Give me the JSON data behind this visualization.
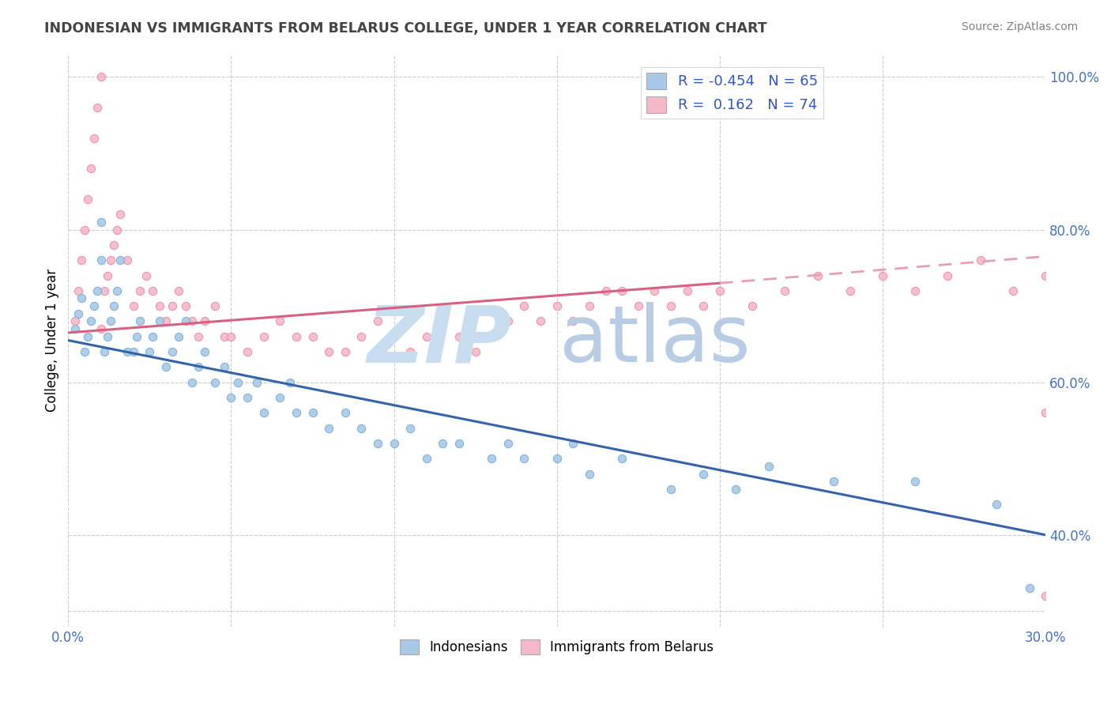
{
  "title": "INDONESIAN VS IMMIGRANTS FROM BELARUS COLLEGE, UNDER 1 YEAR CORRELATION CHART",
  "source": "Source: ZipAtlas.com",
  "ylabel": "College, Under 1 year",
  "xlim": [
    0.0,
    0.3
  ],
  "ylim": [
    0.28,
    1.03
  ],
  "blue_color": "#a8c8e8",
  "blue_edge_color": "#7aafd4",
  "pink_color": "#f4b8c8",
  "pink_edge_color": "#e890a8",
  "blue_line_color": "#3464a8",
  "pink_line_color": "#d86080",
  "pink_dash_color": "#e8a0b0",
  "legend_text_color": "#3355cc",
  "title_color": "#444444",
  "grid_color": "#cccccc",
  "tick_color": "#4472c4",
  "watermark_zip_color": "#c8ddf0",
  "watermark_atlas_color": "#b8cce4",
  "blue_line_x0": 0.0,
  "blue_line_y0": 0.655,
  "blue_line_x1": 0.3,
  "blue_line_y1": 0.4,
  "pink_line_x0": 0.0,
  "pink_line_y0": 0.665,
  "pink_line_solid_x1": 0.2,
  "pink_line_solid_y1": 0.73,
  "pink_line_dash_x1": 0.3,
  "pink_line_dash_y1": 0.765,
  "indo_x": [
    0.002,
    0.003,
    0.004,
    0.005,
    0.006,
    0.007,
    0.008,
    0.009,
    0.01,
    0.01,
    0.011,
    0.012,
    0.013,
    0.014,
    0.015,
    0.016,
    0.018,
    0.02,
    0.021,
    0.022,
    0.025,
    0.026,
    0.028,
    0.03,
    0.032,
    0.034,
    0.036,
    0.038,
    0.04,
    0.042,
    0.045,
    0.048,
    0.05,
    0.052,
    0.055,
    0.058,
    0.06,
    0.065,
    0.068,
    0.07,
    0.075,
    0.08,
    0.085,
    0.09,
    0.095,
    0.1,
    0.105,
    0.11,
    0.115,
    0.12,
    0.13,
    0.135,
    0.14,
    0.15,
    0.155,
    0.16,
    0.17,
    0.185,
    0.195,
    0.205,
    0.215,
    0.235,
    0.26,
    0.285,
    0.295
  ],
  "indo_y": [
    0.67,
    0.69,
    0.71,
    0.64,
    0.66,
    0.68,
    0.7,
    0.72,
    0.76,
    0.81,
    0.64,
    0.66,
    0.68,
    0.7,
    0.72,
    0.76,
    0.64,
    0.64,
    0.66,
    0.68,
    0.64,
    0.66,
    0.68,
    0.62,
    0.64,
    0.66,
    0.68,
    0.6,
    0.62,
    0.64,
    0.6,
    0.62,
    0.58,
    0.6,
    0.58,
    0.6,
    0.56,
    0.58,
    0.6,
    0.56,
    0.56,
    0.54,
    0.56,
    0.54,
    0.52,
    0.52,
    0.54,
    0.5,
    0.52,
    0.52,
    0.5,
    0.52,
    0.5,
    0.5,
    0.52,
    0.48,
    0.5,
    0.46,
    0.48,
    0.46,
    0.49,
    0.47,
    0.47,
    0.44,
    0.33
  ],
  "bel_x": [
    0.002,
    0.003,
    0.004,
    0.005,
    0.006,
    0.007,
    0.008,
    0.009,
    0.01,
    0.01,
    0.011,
    0.012,
    0.013,
    0.014,
    0.015,
    0.016,
    0.018,
    0.02,
    0.022,
    0.024,
    0.026,
    0.028,
    0.03,
    0.032,
    0.034,
    0.036,
    0.038,
    0.04,
    0.042,
    0.045,
    0.048,
    0.05,
    0.055,
    0.06,
    0.065,
    0.07,
    0.075,
    0.08,
    0.085,
    0.09,
    0.095,
    0.1,
    0.105,
    0.11,
    0.115,
    0.12,
    0.125,
    0.13,
    0.135,
    0.14,
    0.145,
    0.15,
    0.155,
    0.16,
    0.165,
    0.17,
    0.175,
    0.18,
    0.185,
    0.19,
    0.195,
    0.2,
    0.21,
    0.22,
    0.23,
    0.24,
    0.25,
    0.26,
    0.27,
    0.28,
    0.29,
    0.3,
    0.3,
    0.3
  ],
  "bel_y": [
    0.68,
    0.72,
    0.76,
    0.8,
    0.84,
    0.88,
    0.92,
    0.96,
    1.0,
    0.67,
    0.72,
    0.74,
    0.76,
    0.78,
    0.8,
    0.82,
    0.76,
    0.7,
    0.72,
    0.74,
    0.72,
    0.7,
    0.68,
    0.7,
    0.72,
    0.7,
    0.68,
    0.66,
    0.68,
    0.7,
    0.66,
    0.66,
    0.64,
    0.66,
    0.68,
    0.66,
    0.66,
    0.64,
    0.64,
    0.66,
    0.68,
    0.66,
    0.64,
    0.66,
    0.68,
    0.66,
    0.64,
    0.66,
    0.68,
    0.7,
    0.68,
    0.7,
    0.68,
    0.7,
    0.72,
    0.72,
    0.7,
    0.72,
    0.7,
    0.72,
    0.7,
    0.72,
    0.7,
    0.72,
    0.74,
    0.72,
    0.74,
    0.72,
    0.74,
    0.76,
    0.72,
    0.74,
    0.56,
    0.32
  ]
}
